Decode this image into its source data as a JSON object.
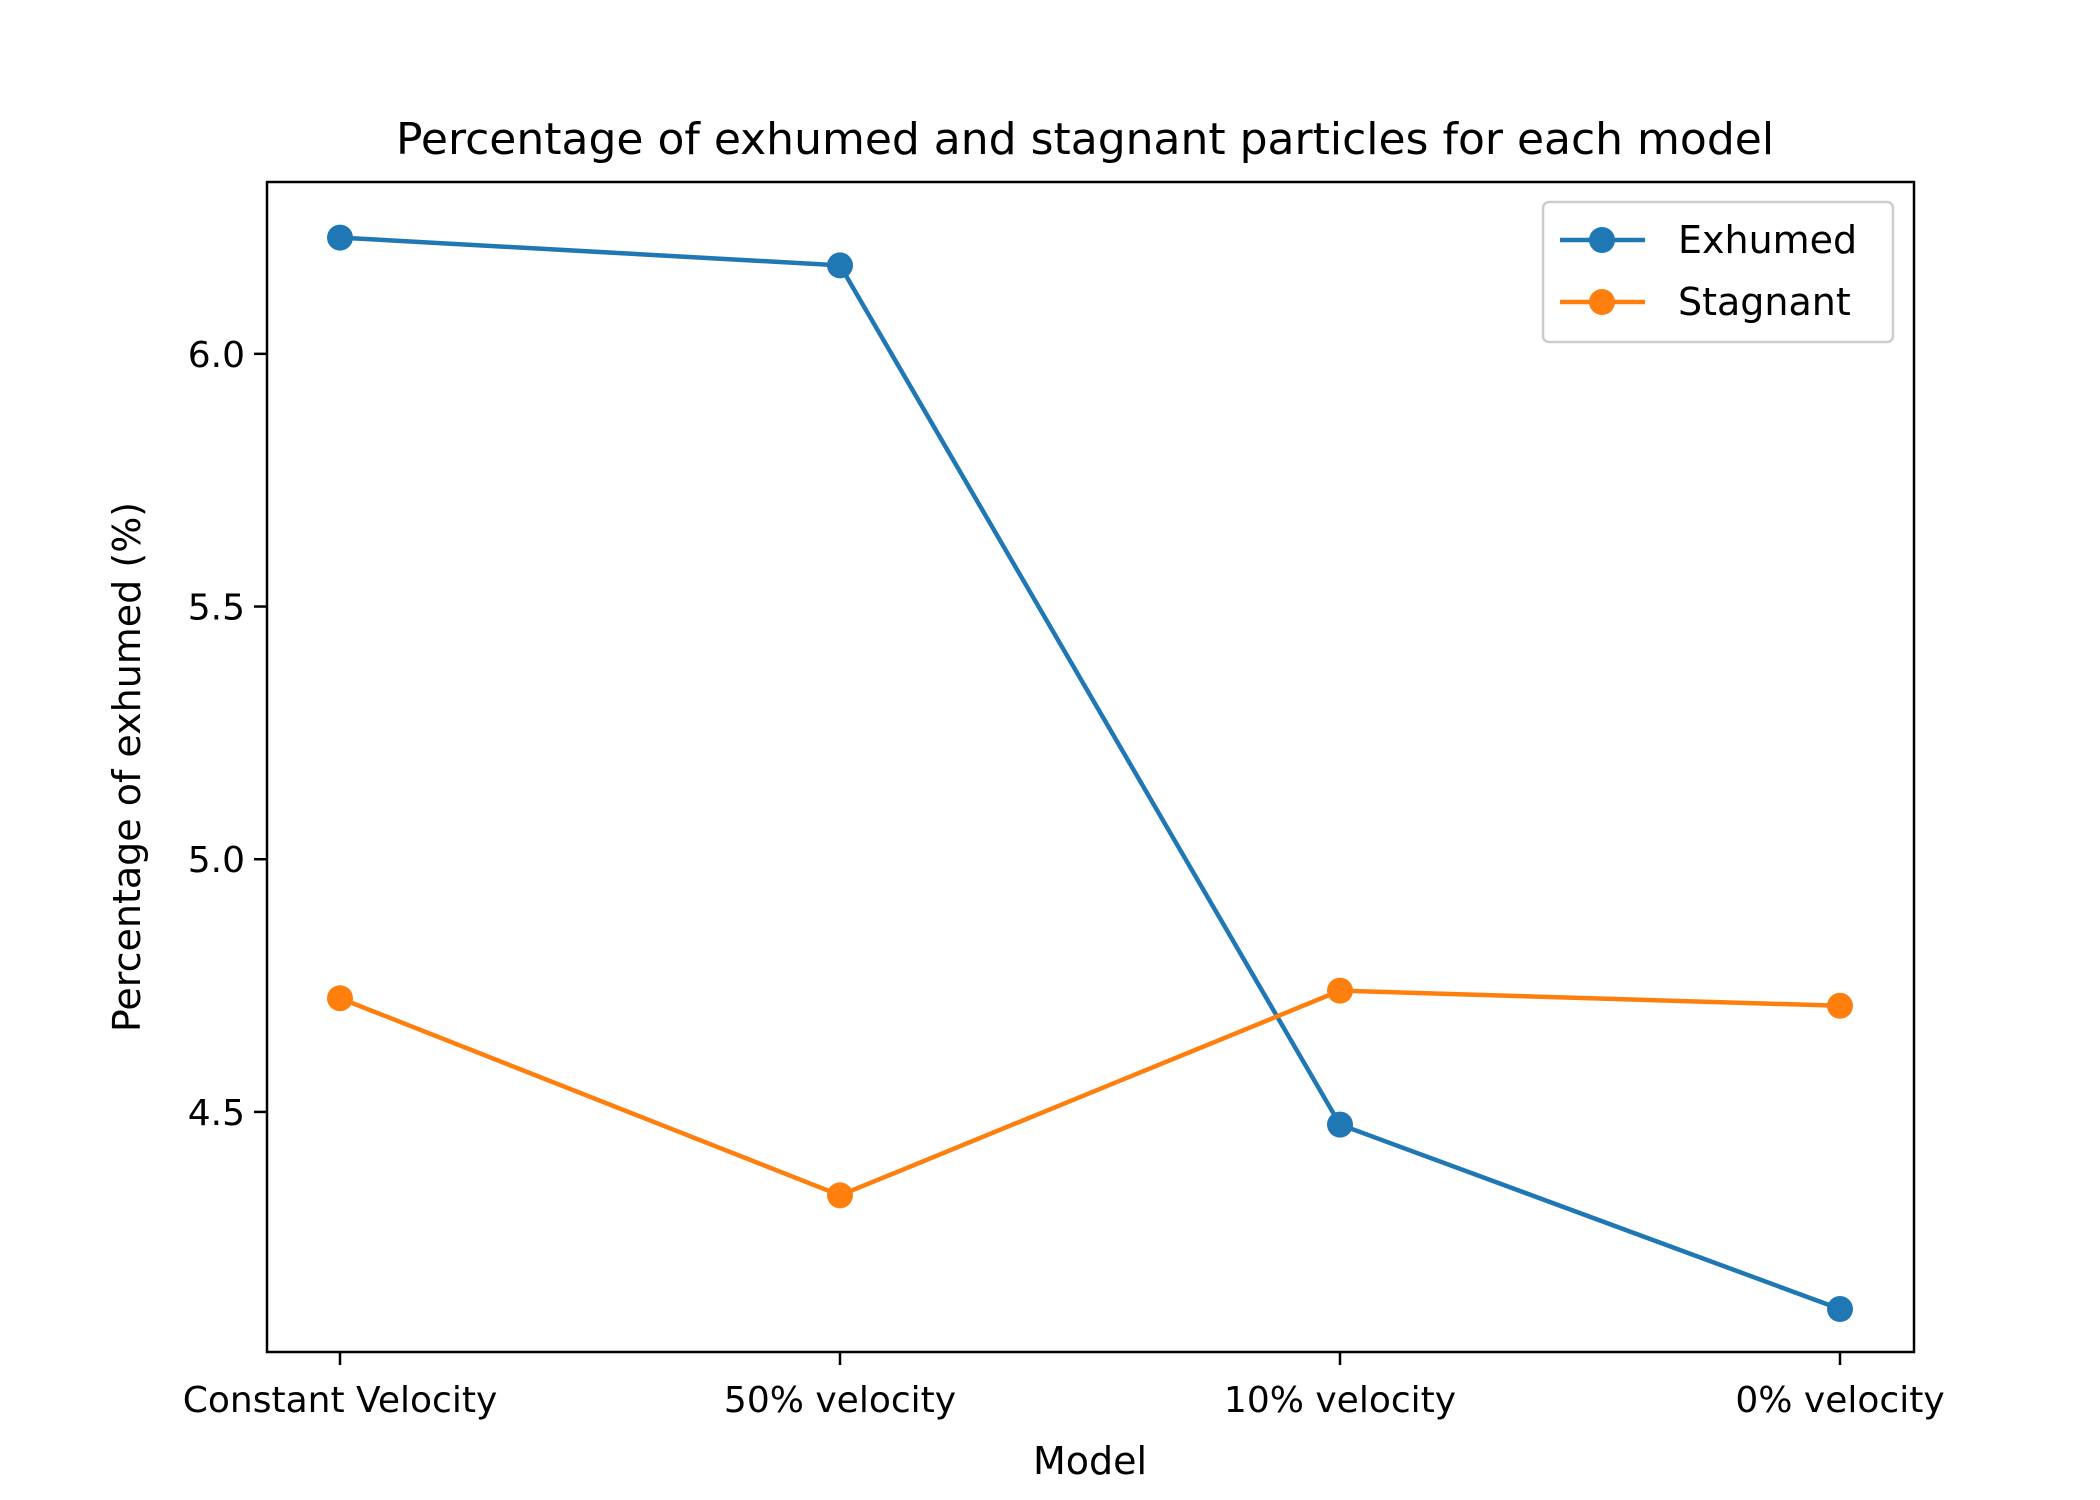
{
  "chart_data": {
    "type": "line",
    "title": "Percentage of exhumed and stagnant particles for each model",
    "xlabel": "Model",
    "ylabel": "Percentage of exhumed (%)",
    "categories": [
      "Constant Velocity",
      "50% velocity",
      "10% velocity",
      "0% velocity"
    ],
    "series": [
      {
        "name": "Exhumed",
        "values": [
          6.23,
          6.175,
          4.475,
          4.11
        ],
        "color": "#1f77b4"
      },
      {
        "name": "Stagnant",
        "values": [
          4.725,
          4.335,
          4.74,
          4.71
        ],
        "color": "#ff7f0e"
      }
    ],
    "ylim": [
      4.025,
      6.34
    ],
    "yticks": [
      4.5,
      5.0,
      5.5,
      6.0
    ],
    "ytick_labels": [
      "4.5",
      "5.0",
      "5.5",
      "6.0"
    ],
    "grid": false,
    "legend_position": "top-right"
  }
}
